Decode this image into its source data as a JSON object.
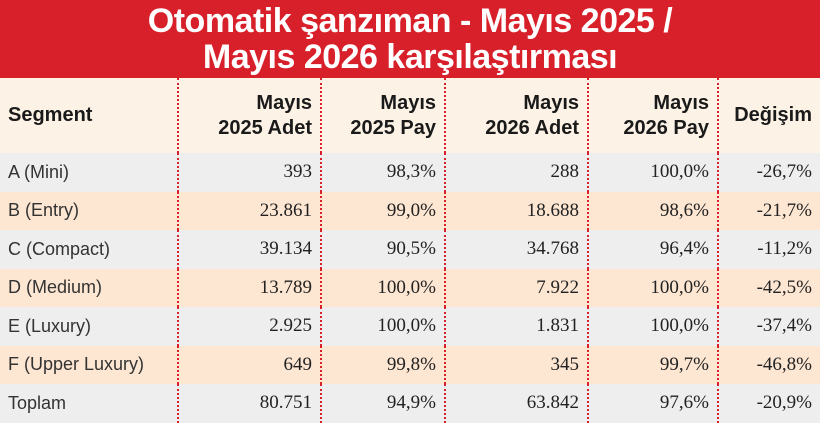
{
  "title": {
    "line1": "Otomatik şanzıman - Mayıs 2025 /",
    "line2": "Mayıs 2026 karşılaştırması"
  },
  "table": {
    "headers": [
      [
        "Segment"
      ],
      [
        "Mayıs",
        "2025 Adet"
      ],
      [
        "Mayıs",
        "2025 Pay"
      ],
      [
        "Mayıs",
        "2026 Adet"
      ],
      [
        "Mayıs",
        "2026 Pay"
      ],
      [
        "Değişim"
      ]
    ],
    "rows": [
      [
        "A (Mini)",
        "393",
        "98,3%",
        "288",
        "100,0%",
        "-26,7%"
      ],
      [
        "B (Entry)",
        "23.861",
        "99,0%",
        "18.688",
        "98,6%",
        "-21,7%"
      ],
      [
        "C (Compact)",
        "39.134",
        "90,5%",
        "34.768",
        "96,4%",
        "-11,2%"
      ],
      [
        "D (Medium)",
        "13.789",
        "100,0%",
        "7.922",
        "100,0%",
        "-42,5%"
      ],
      [
        "E (Luxury)",
        "2.925",
        "100,0%",
        "1.831",
        "100,0%",
        "-37,4%"
      ],
      [
        "F (Upper Luxury)",
        "649",
        "99,8%",
        "345",
        "99,7%",
        "-46,8%"
      ],
      [
        "Toplam",
        "80.751",
        "94,9%",
        "63.842",
        "97,6%",
        "-20,9%"
      ]
    ]
  },
  "colors": {
    "title_bg": "#d8202a",
    "header_bg": "#fdf2e6",
    "row_gray": "#eeeeee",
    "row_peach": "#fde6d2",
    "divider": "#d8202a"
  }
}
